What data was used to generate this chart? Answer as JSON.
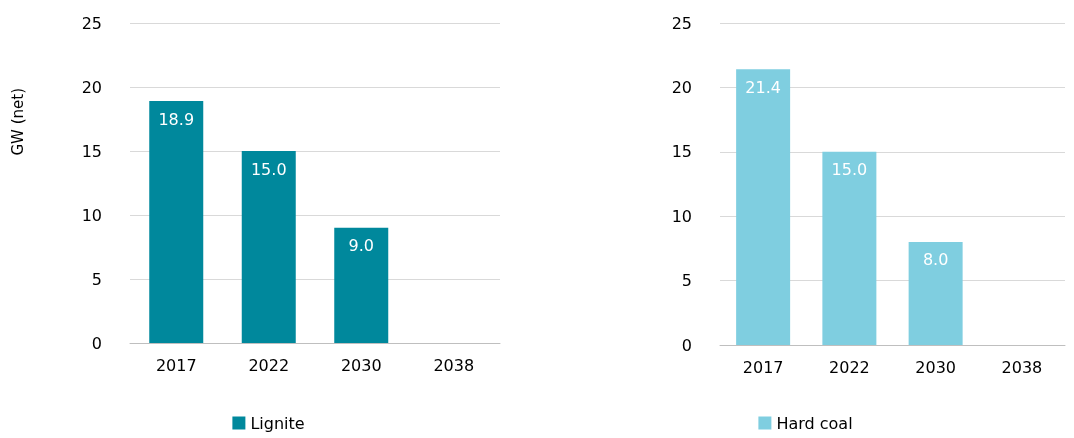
{
  "chart_data": [
    {
      "type": "bar",
      "ylabel": "GW (net)",
      "categories": [
        "2017",
        "2022",
        "2030",
        "2038"
      ],
      "series": [
        {
          "name": "Lignite",
          "color": "#00889c",
          "values": [
            18.9,
            15.0,
            9.0,
            null
          ],
          "value_labels": [
            "18.9",
            "15.0",
            "9.0",
            null
          ]
        }
      ],
      "ylim": [
        0,
        25
      ],
      "yticks": [
        0,
        5,
        10,
        15,
        20,
        25
      ],
      "grid": "y",
      "legend": "bottom"
    },
    {
      "type": "bar",
      "categories": [
        "2017",
        "2022",
        "2030",
        "2038"
      ],
      "series": [
        {
          "name": "Hard coal",
          "color": "#7fcee0",
          "values": [
            21.4,
            15.0,
            8.0,
            null
          ],
          "value_labels": [
            "21.4",
            "15.0",
            "8.0",
            null
          ]
        }
      ],
      "ylim": [
        0,
        25
      ],
      "yticks": [
        0,
        5,
        10,
        15,
        20,
        25
      ],
      "grid": "y",
      "legend": "bottom"
    }
  ]
}
